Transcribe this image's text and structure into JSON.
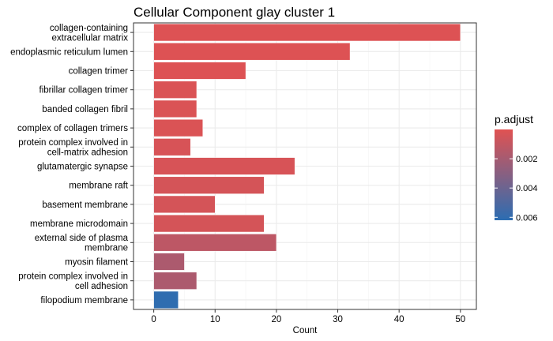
{
  "chart_data": {
    "type": "bar",
    "orientation": "horizontal",
    "title": "Cellular Component glay cluster 1",
    "xlabel": "Count",
    "ylabel": "",
    "xlim": [
      -3.3,
      52.6
    ],
    "xticks": [
      0,
      10,
      20,
      30,
      40,
      50
    ],
    "grid": true,
    "categories": [
      [
        "collagen-containing",
        "extracellular matrix"
      ],
      [
        "endoplasmic reticulum lumen"
      ],
      [
        "collagen trimer"
      ],
      [
        "fibrillar collagen trimer"
      ],
      [
        "banded collagen fibril"
      ],
      [
        "complex of collagen trimers"
      ],
      [
        "protein complex involved in",
        "cell-matrix adhesion"
      ],
      [
        "glutamatergic synapse"
      ],
      [
        "membrane raft"
      ],
      [
        "basement membrane"
      ],
      [
        "membrane microdomain"
      ],
      [
        "external side of plasma",
        "membrane"
      ],
      [
        "myosin filament"
      ],
      [
        "protein complex involved in",
        "cell adhesion"
      ],
      [
        "filopodium membrane"
      ]
    ],
    "values": [
      50,
      32,
      15,
      7,
      7,
      8,
      6,
      23,
      18,
      10,
      18,
      20,
      5,
      7,
      4
    ],
    "color_values": [
      0.0001,
      0.0001,
      0.0001,
      0.0002,
      0.0002,
      0.0002,
      0.0003,
      0.0003,
      0.0004,
      0.0004,
      0.0004,
      0.0012,
      0.0018,
      0.0018,
      0.0061
    ],
    "legend": {
      "title": "p.adjust",
      "placement": "right",
      "ticks": [
        0.002,
        0.004,
        0.006
      ],
      "tick_labels": [
        "0.002",
        "0.004",
        "0.006"
      ],
      "range": [
        0.0,
        0.0062
      ],
      "color_low": "#e05252",
      "color_high": "#2c6db2"
    },
    "colors": {
      "bar_outline": "#ffffff",
      "grid": "#ebebeb",
      "panel_border": "#333333"
    }
  }
}
